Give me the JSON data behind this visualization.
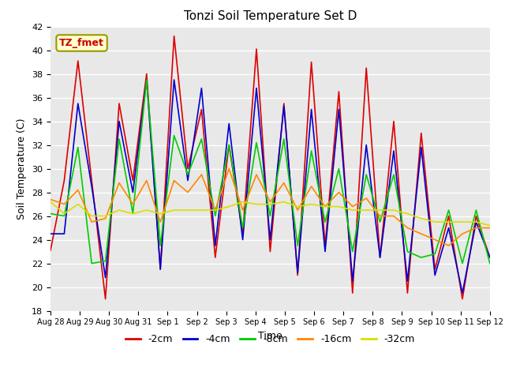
{
  "title": "Tonzi Soil Temperature Set D",
  "xlabel": "Time",
  "ylabel": "Soil Temperature (C)",
  "ylim": [
    18,
    42
  ],
  "annotation_text": "TZ_fmet",
  "annotation_bg": "#ffffcc",
  "annotation_border": "#999900",
  "annotation_color": "#cc0000",
  "background_color": "#e8e8e8",
  "legend_entries": [
    "-2cm",
    "-4cm",
    "-8cm",
    "-16cm",
    "-32cm"
  ],
  "line_colors": [
    "#dd0000",
    "#0000cc",
    "#00cc00",
    "#ff8800",
    "#dddd00"
  ],
  "x_tick_labels": [
    "Aug 28",
    "Aug 29",
    "Aug 30",
    "Aug 31",
    "Sep 1",
    "Sep 2",
    "Sep 3",
    "Sep 4",
    "Sep 5",
    "Sep 6",
    "Sep 7",
    "Sep 8",
    "Sep 9",
    "Sep 10",
    "Sep 11",
    "Sep 12"
  ],
  "series": {
    "2cm": [
      23.1,
      29.0,
      39.1,
      29.0,
      19.0,
      35.5,
      29.0,
      38.0,
      21.5,
      41.2,
      30.0,
      35.0,
      22.5,
      32.0,
      24.5,
      40.1,
      23.0,
      35.5,
      21.0,
      39.0,
      23.5,
      36.5,
      19.5,
      38.5,
      22.5,
      34.0,
      19.5,
      33.0,
      21.5,
      26.0,
      19.0,
      26.0,
      22.5
    ],
    "4cm": [
      24.5,
      24.5,
      35.5,
      28.5,
      20.8,
      34.0,
      28.0,
      37.5,
      21.5,
      37.5,
      29.0,
      36.8,
      23.5,
      33.8,
      24.0,
      36.8,
      24.0,
      35.3,
      21.2,
      35.0,
      23.0,
      35.0,
      20.5,
      32.0,
      22.5,
      31.5,
      20.5,
      31.8,
      21.0,
      25.0,
      19.5,
      25.5,
      22.5
    ],
    "8cm": [
      26.2,
      26.0,
      31.8,
      22.0,
      22.2,
      32.5,
      26.2,
      37.5,
      23.5,
      32.8,
      29.5,
      32.5,
      26.0,
      32.0,
      25.0,
      32.2,
      26.0,
      32.5,
      23.5,
      31.5,
      25.5,
      30.0,
      23.0,
      29.5,
      25.5,
      29.5,
      23.0,
      22.5,
      22.8,
      26.5,
      22.0,
      26.5,
      22.0
    ],
    "16cm": [
      27.4,
      27.0,
      28.2,
      25.5,
      25.8,
      28.8,
      27.0,
      29.0,
      25.5,
      29.0,
      28.0,
      29.5,
      26.5,
      30.0,
      26.5,
      29.5,
      27.2,
      28.8,
      26.5,
      28.5,
      26.8,
      28.0,
      26.8,
      27.5,
      26.0,
      26.0,
      25.0,
      24.5,
      24.0,
      23.5,
      24.5,
      25.0,
      25.0
    ],
    "32cm": [
      27.2,
      26.2,
      27.0,
      26.0,
      26.0,
      26.5,
      26.2,
      26.5,
      26.2,
      26.5,
      26.5,
      26.5,
      26.5,
      26.8,
      27.2,
      27.0,
      27.0,
      27.2,
      26.8,
      27.0,
      26.8,
      26.8,
      26.5,
      26.5,
      26.5,
      26.5,
      26.2,
      25.8,
      25.5,
      25.5,
      25.5,
      25.5,
      25.2
    ]
  }
}
